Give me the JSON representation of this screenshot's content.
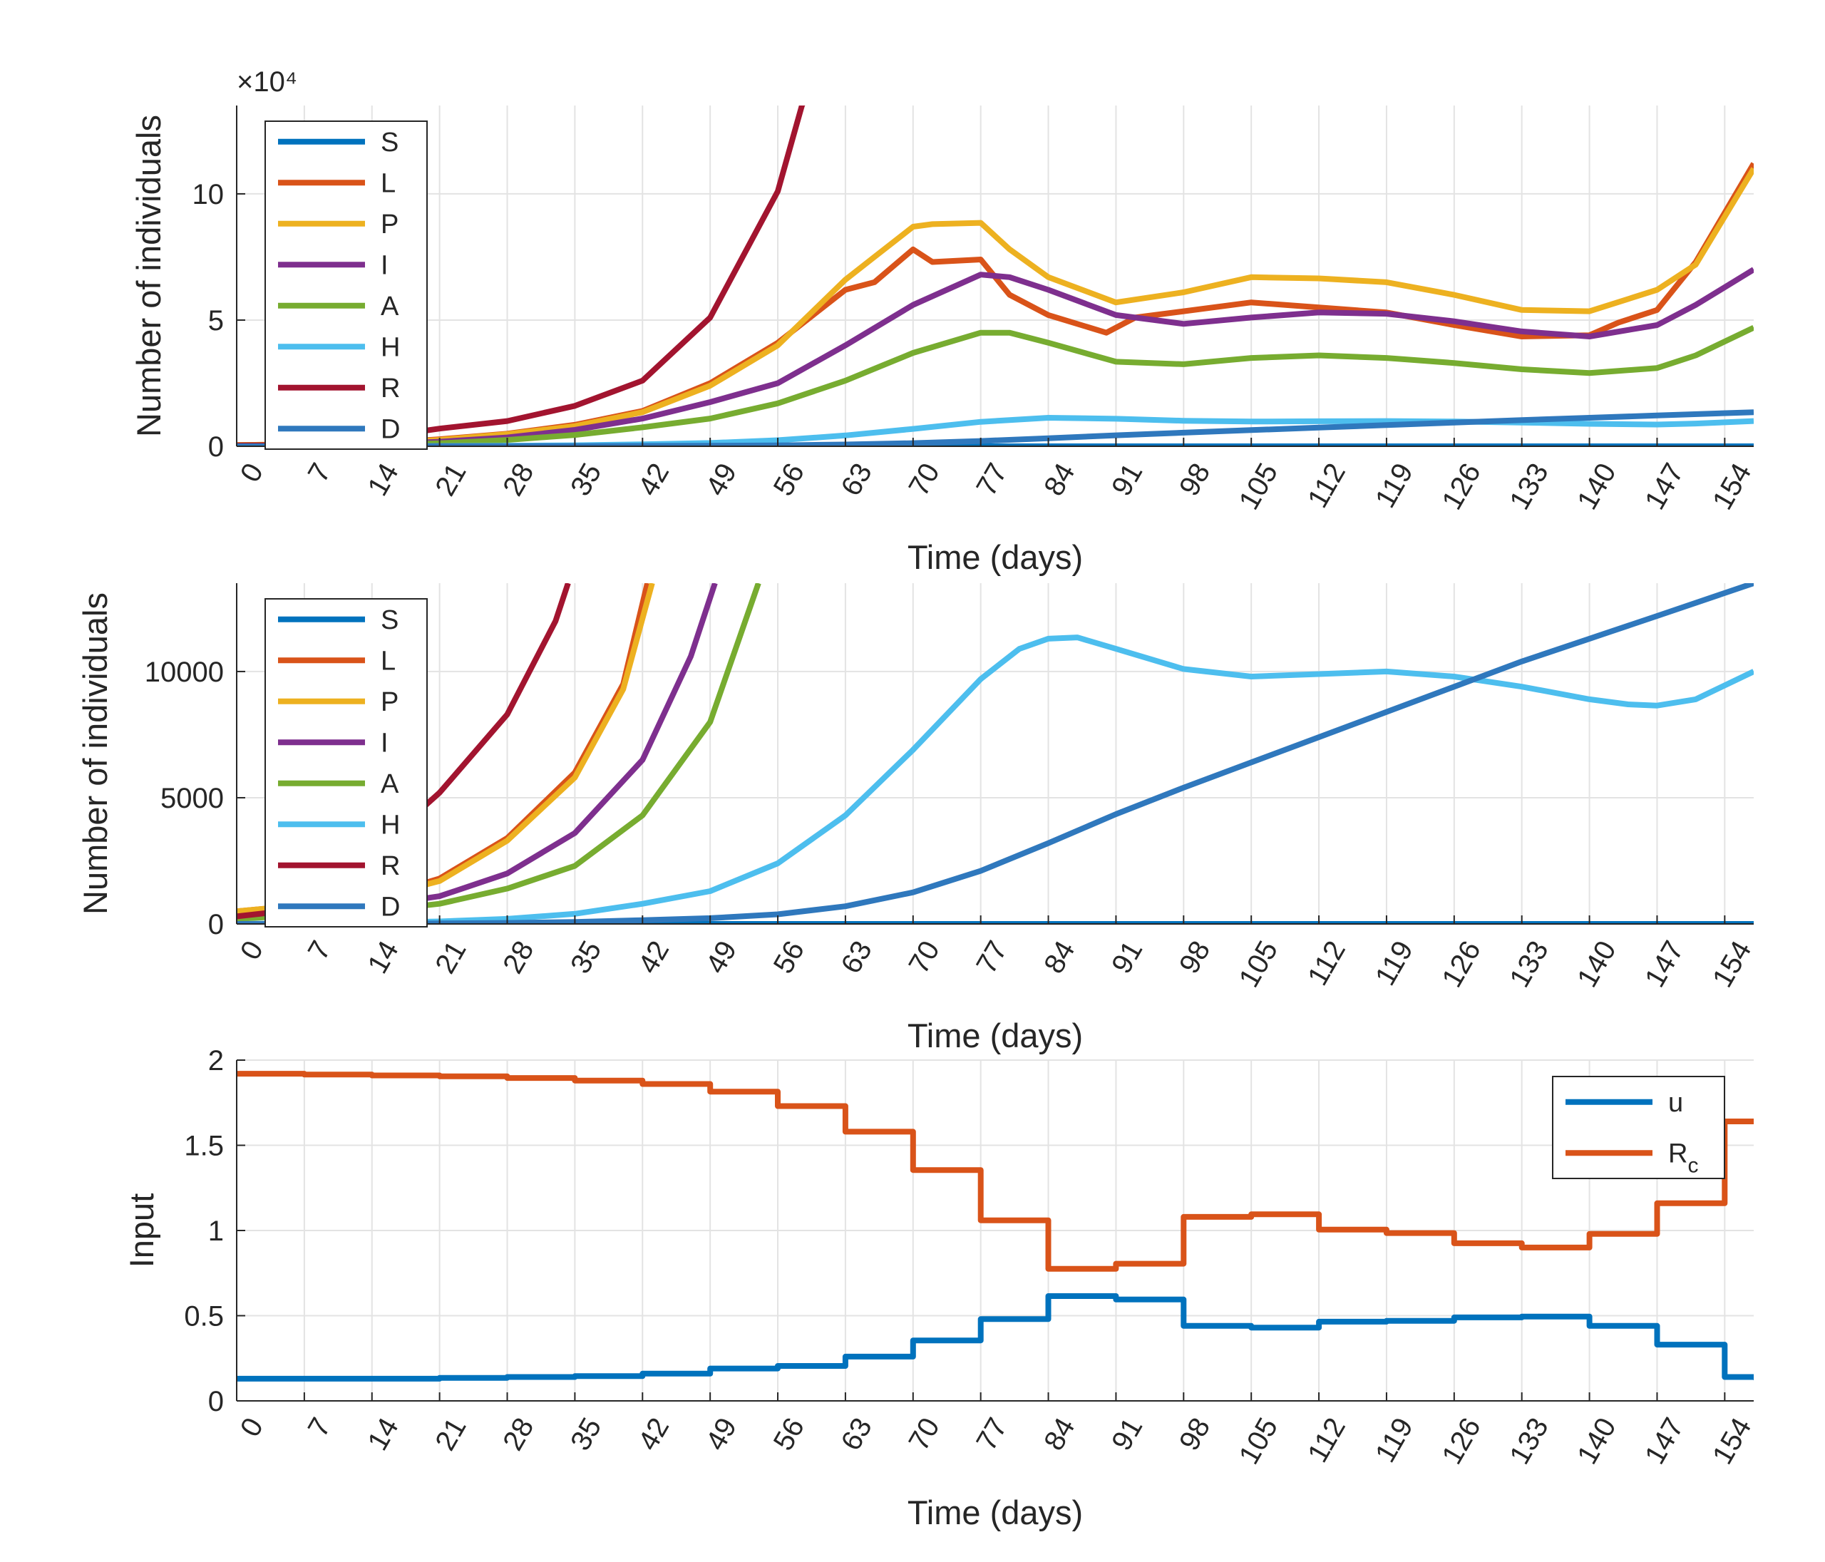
{
  "chart_data": [
    {
      "type": "line",
      "xlabel": "Time (days)",
      "ylabel": "Number of individuals",
      "exponent_label": "×10⁴",
      "xticks": [
        0,
        7,
        14,
        21,
        28,
        35,
        42,
        49,
        56,
        63,
        70,
        77,
        84,
        91,
        98,
        105,
        112,
        119,
        126,
        133,
        140,
        147,
        154
      ],
      "xlim": [
        0,
        157
      ],
      "ylim": [
        0,
        135000
      ],
      "yticks": [
        0,
        50000,
        100000
      ],
      "ytick_labels": [
        "0",
        "5",
        "10"
      ],
      "grid": true,
      "legend_position": "top-left",
      "series": [
        {
          "name": "S",
          "color": "#0072BD",
          "x": [
            0,
            20,
            40,
            60,
            80,
            100,
            120,
            140,
            157
          ],
          "y": [
            0,
            0,
            0,
            0,
            0,
            0,
            0,
            0,
            0
          ]
        },
        {
          "name": "L",
          "color": "#D95319",
          "x": [
            0,
            14,
            21,
            28,
            35,
            42,
            49,
            56,
            63,
            66,
            70,
            72,
            77,
            80,
            84,
            90,
            93,
            98,
            105,
            112,
            119,
            126,
            133,
            140,
            143,
            147,
            151,
            157
          ],
          "y": [
            500,
            1000,
            2800,
            5000,
            8500,
            14000,
            25000,
            41000,
            62000,
            65000,
            78000,
            73000,
            74000,
            60000,
            52000,
            45000,
            51000,
            53500,
            57000,
            55000,
            53000,
            48000,
            43500,
            44000,
            49000,
            54000,
            73000,
            112000
          ]
        },
        {
          "name": "P",
          "color": "#EDB120",
          "x": [
            0,
            14,
            21,
            28,
            35,
            42,
            49,
            56,
            63,
            66,
            70,
            72,
            77,
            80,
            84,
            91,
            98,
            105,
            112,
            119,
            126,
            133,
            140,
            147,
            151,
            157
          ],
          "y": [
            500,
            1000,
            2500,
            4800,
            8000,
            13500,
            24000,
            40000,
            66000,
            75000,
            87000,
            88000,
            88500,
            78000,
            67000,
            57000,
            61000,
            67000,
            66500,
            65000,
            60000,
            54000,
            53500,
            62000,
            72000,
            110000
          ]
        },
        {
          "name": "I",
          "color": "#7E2F8E",
          "x": [
            0,
            14,
            21,
            28,
            35,
            42,
            49,
            56,
            63,
            70,
            77,
            80,
            84,
            91,
            98,
            105,
            112,
            119,
            126,
            133,
            140,
            147,
            151,
            157
          ],
          "y": [
            300,
            700,
            1800,
            3500,
            6500,
            11000,
            17500,
            25000,
            40000,
            56000,
            68000,
            67000,
            62000,
            52000,
            48500,
            51000,
            53000,
            52500,
            49500,
            45500,
            43500,
            48000,
            56000,
            70000
          ]
        },
        {
          "name": "A",
          "color": "#77AC30",
          "x": [
            0,
            14,
            21,
            28,
            35,
            42,
            49,
            56,
            63,
            70,
            77,
            80,
            84,
            91,
            98,
            105,
            112,
            119,
            126,
            133,
            140,
            147,
            151,
            157
          ],
          "y": [
            200,
            500,
            1200,
            2500,
            4500,
            7500,
            11000,
            17000,
            26000,
            37000,
            45000,
            45000,
            41000,
            33500,
            32500,
            35000,
            36000,
            35000,
            33000,
            30500,
            29000,
            31000,
            36000,
            47000
          ]
        },
        {
          "name": "H",
          "color": "#4DBEEE",
          "x": [
            0,
            14,
            21,
            28,
            35,
            42,
            49,
            56,
            63,
            70,
            77,
            84,
            91,
            98,
            105,
            112,
            119,
            126,
            133,
            140,
            147,
            151,
            157
          ],
          "y": [
            0,
            50,
            100,
            200,
            400,
            800,
            1300,
            2400,
            4300,
            6900,
            9700,
            11300,
            10900,
            10100,
            9800,
            9900,
            10000,
            9800,
            9400,
            8900,
            8600,
            9000,
            10000
          ]
        },
        {
          "name": "R",
          "color": "#A2142F",
          "x": [
            0,
            7,
            14,
            21,
            28,
            35,
            42,
            49,
            56,
            58.5,
            62
          ],
          "y": [
            300,
            600,
            3200,
            7000,
            10000,
            16000,
            26000,
            51000,
            101000,
            135000,
            160000
          ]
        },
        {
          "name": "D",
          "color": "#2F78BD",
          "x": [
            0,
            14,
            21,
            28,
            35,
            42,
            49,
            56,
            63,
            70,
            77,
            84,
            91,
            98,
            105,
            112,
            119,
            126,
            133,
            140,
            147,
            157
          ],
          "y": [
            0,
            10,
            20,
            40,
            80,
            150,
            230,
            380,
            700,
            1250,
            2100,
            3200,
            4350,
            5400,
            6400,
            7400,
            8400,
            9400,
            10400,
            11300,
            12200,
            13500
          ]
        }
      ]
    },
    {
      "type": "line",
      "xlabel": "Time (days)",
      "ylabel": "Number of individuals",
      "xticks": [
        0,
        7,
        14,
        21,
        28,
        35,
        42,
        49,
        56,
        63,
        70,
        77,
        84,
        91,
        98,
        105,
        112,
        119,
        126,
        133,
        140,
        147,
        154
      ],
      "xlim": [
        0,
        157
      ],
      "ylim": [
        0,
        13500
      ],
      "yticks": [
        0,
        5000,
        10000
      ],
      "ytick_labels": [
        "0",
        "5000",
        "10000"
      ],
      "grid": true,
      "legend_position": "top-left",
      "series": [
        {
          "name": "S",
          "color": "#0072BD",
          "x": [
            0,
            40,
            80,
            120,
            157
          ],
          "y": [
            0,
            0,
            0,
            0,
            0
          ]
        },
        {
          "name": "L",
          "color": "#D95319",
          "x": [
            0,
            14,
            21,
            28,
            35,
            40,
            42.5
          ],
          "y": [
            500,
            1000,
            1800,
            3400,
            6000,
            9500,
            13500
          ]
        },
        {
          "name": "P",
          "color": "#EDB120",
          "x": [
            0,
            14,
            21,
            28,
            35,
            40,
            43
          ],
          "y": [
            500,
            1000,
            1700,
            3300,
            5800,
            9300,
            13500
          ]
        },
        {
          "name": "I",
          "color": "#7E2F8E",
          "x": [
            0,
            14,
            21,
            28,
            35,
            42,
            47,
            49.5
          ],
          "y": [
            300,
            700,
            1100,
            2000,
            3600,
            6500,
            10600,
            13500
          ]
        },
        {
          "name": "A",
          "color": "#77AC30",
          "x": [
            0,
            14,
            21,
            28,
            35,
            42,
            49,
            54
          ],
          "y": [
            200,
            500,
            800,
            1400,
            2300,
            4300,
            8000,
            13500
          ]
        },
        {
          "name": "H",
          "color": "#4DBEEE",
          "x": [
            0,
            14,
            21,
            28,
            35,
            42,
            49,
            56,
            63,
            70,
            77,
            81,
            84,
            87,
            91,
            98,
            105,
            112,
            119,
            126,
            133,
            140,
            144,
            147,
            151,
            157
          ],
          "y": [
            0,
            50,
            100,
            200,
            400,
            800,
            1300,
            2400,
            4300,
            6900,
            9700,
            10900,
            11300,
            11350,
            10900,
            10100,
            9800,
            9900,
            10000,
            9800,
            9400,
            8900,
            8700,
            8650,
            8900,
            10000
          ]
        },
        {
          "name": "R",
          "color": "#A2142F",
          "x": [
            0,
            7,
            14,
            21,
            28,
            33,
            34.3
          ],
          "y": [
            300,
            600,
            2800,
            5200,
            8300,
            12000,
            13500
          ]
        },
        {
          "name": "D",
          "color": "#2F78BD",
          "x": [
            0,
            14,
            21,
            28,
            35,
            42,
            49,
            56,
            63,
            70,
            77,
            84,
            91,
            98,
            105,
            112,
            119,
            126,
            133,
            140,
            147,
            157
          ],
          "y": [
            0,
            10,
            20,
            40,
            80,
            150,
            230,
            380,
            700,
            1250,
            2100,
            3200,
            4350,
            5400,
            6400,
            7400,
            8400,
            9400,
            10400,
            11300,
            12200,
            13500
          ]
        }
      ]
    },
    {
      "type": "line",
      "xlabel": "Time (days)",
      "ylabel": "Input",
      "xticks": [
        0,
        7,
        14,
        21,
        28,
        35,
        42,
        49,
        56,
        63,
        70,
        77,
        84,
        91,
        98,
        105,
        112,
        119,
        126,
        133,
        140,
        147,
        154
      ],
      "xlim": [
        0,
        157
      ],
      "ylim": [
        0,
        2
      ],
      "yticks": [
        0,
        0.5,
        1,
        1.5,
        2
      ],
      "ytick_labels": [
        "0",
        "0.5",
        "1",
        "1.5",
        "2"
      ],
      "grid": true,
      "legend_position": "top-right",
      "series": [
        {
          "name": "u",
          "color": "#0072BD",
          "values": [
            0.13,
            0.13,
            0.13,
            0.135,
            0.14,
            0.145,
            0.16,
            0.19,
            0.205,
            0.26,
            0.355,
            0.48,
            0.615,
            0.595,
            0.44,
            0.43,
            0.465,
            0.47,
            0.49,
            0.495,
            0.44,
            0.33,
            0.14,
            0.005
          ]
        },
        {
          "name": "R",
          "subscript": "c",
          "color": "#D95319",
          "values": [
            1.92,
            1.915,
            1.91,
            1.905,
            1.895,
            1.88,
            1.86,
            1.815,
            1.73,
            1.58,
            1.355,
            1.06,
            0.775,
            0.805,
            1.08,
            1.095,
            1.005,
            0.985,
            0.925,
            0.9,
            0.98,
            1.16,
            1.64,
            1.6
          ]
        }
      ]
    }
  ]
}
